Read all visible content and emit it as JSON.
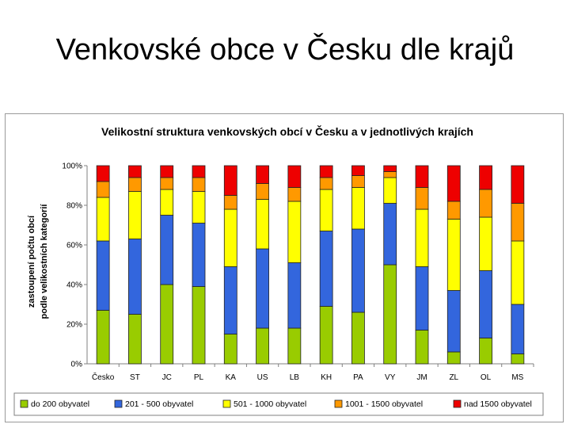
{
  "slide": {
    "title": "Venkovské obce v Česku dle krajů"
  },
  "chart_data": {
    "type": "bar",
    "stacked": true,
    "percent": true,
    "title": "Velikostní struktura venkovských obcí v Česku a v jednotlivých krajích",
    "ylabel_lines": [
      "zastoupení počtu obcí",
      "podle velikostních kategorií"
    ],
    "xlabel": "",
    "ylim": [
      0,
      100
    ],
    "yticks": [
      "0%",
      "20%",
      "40%",
      "60%",
      "80%",
      "100%"
    ],
    "grid": false,
    "legend_position": "bottom",
    "categories": [
      "Česko",
      "ST",
      "JC",
      "PL",
      "KA",
      "US",
      "LB",
      "KH",
      "PA",
      "VY",
      "JM",
      "ZL",
      "OL",
      "MS"
    ],
    "series": [
      {
        "name": "do 200 obyvatel",
        "color": "#99cc00",
        "values": [
          27,
          25,
          40,
          39,
          15,
          18,
          18,
          29,
          26,
          50,
          17,
          6,
          13,
          5
        ]
      },
      {
        "name": "201 - 500 obyvatel",
        "color": "#3366dd",
        "values": [
          35,
          38,
          35,
          32,
          34,
          40,
          33,
          38,
          42,
          31,
          32,
          31,
          34,
          25
        ]
      },
      {
        "name": "501 - 1000 obyvatel",
        "color": "#ffff00",
        "values": [
          22,
          24,
          13,
          16,
          29,
          25,
          31,
          21,
          21,
          13,
          29,
          36,
          27,
          32
        ]
      },
      {
        "name": "1001 - 1500 obyvatel",
        "color": "#ff9900",
        "values": [
          8,
          7,
          6,
          7,
          7,
          8,
          7,
          6,
          6,
          3,
          11,
          9,
          14,
          19
        ]
      },
      {
        "name": "nad 1500 obyvatel",
        "color": "#ee0000",
        "values": [
          8,
          6,
          6,
          6,
          15,
          9,
          11,
          6,
          5,
          3,
          11,
          18,
          12,
          19
        ]
      }
    ]
  }
}
